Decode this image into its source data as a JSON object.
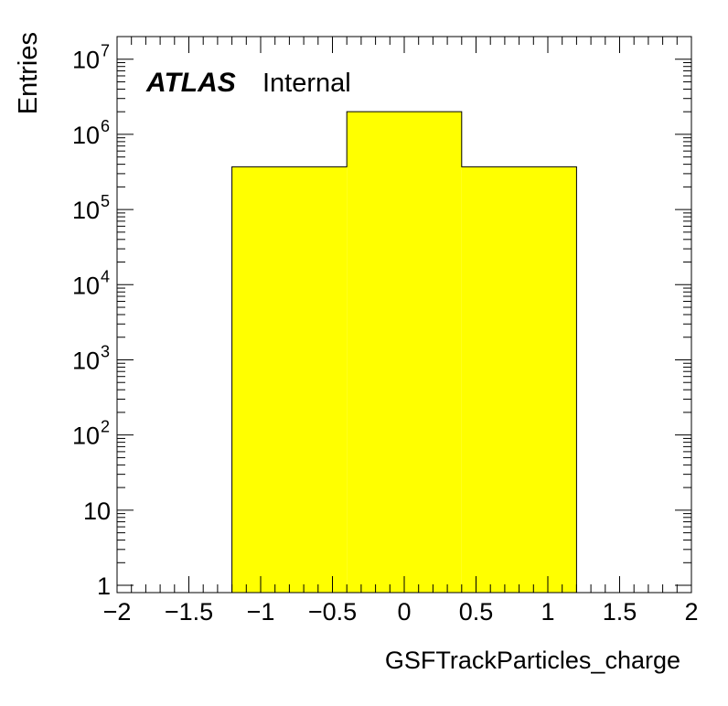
{
  "chart_data": {
    "type": "bar",
    "bin_edges": [
      -1.2,
      -0.4,
      0.4,
      1.2
    ],
    "values": [
      370000,
      2000000,
      370000
    ],
    "fill_color": "#ffff00",
    "xlabel": "GSFTrackParticles_charge",
    "ylabel": "Entries",
    "xlim": [
      -2,
      2
    ],
    "ylim": [
      0.8,
      20000000
    ],
    "yscale": "log",
    "x_tick_labels": [
      "−2",
      "−1.5",
      "−1",
      "−0.5",
      "0",
      "0.5",
      "1",
      "1.5",
      "2"
    ],
    "y_tick_labels": [
      {
        "base": "1",
        "exp": ""
      },
      {
        "base": "10",
        "exp": ""
      },
      {
        "base": "10",
        "exp": "2"
      },
      {
        "base": "10",
        "exp": "3"
      },
      {
        "base": "10",
        "exp": "4"
      },
      {
        "base": "10",
        "exp": "5"
      },
      {
        "base": "10",
        "exp": "6"
      },
      {
        "base": "10",
        "exp": "7"
      }
    ],
    "atlas_label": "ATLAS",
    "status_label": "Internal"
  }
}
